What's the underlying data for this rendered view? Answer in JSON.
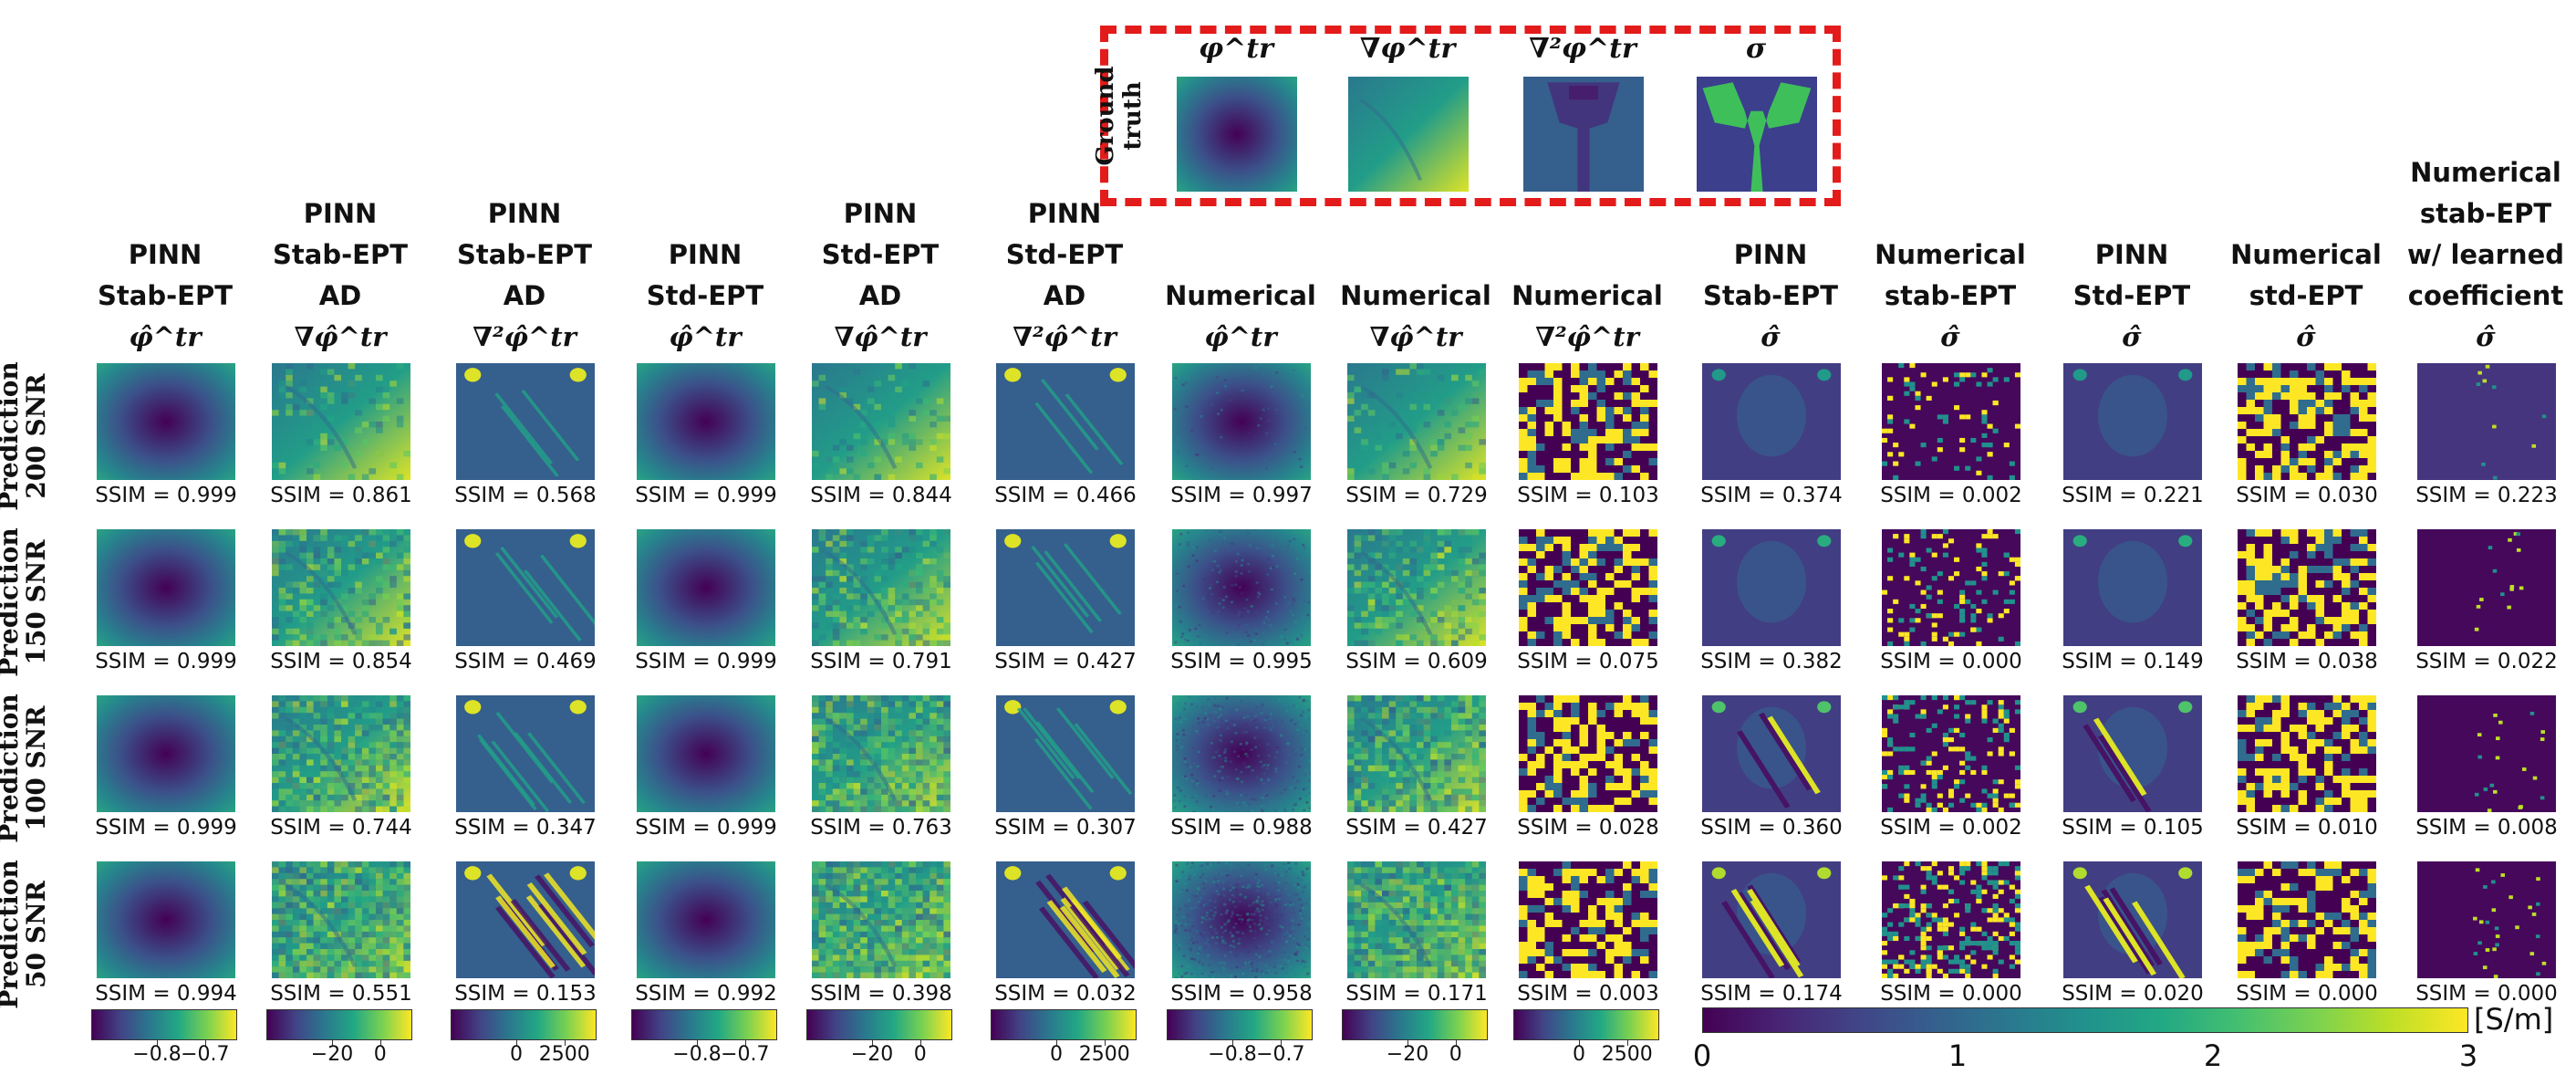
{
  "ground_truth": {
    "row_label_lines": [
      "Ground",
      "truth"
    ],
    "titles": [
      "φ^tr",
      "∇φ^tr",
      "∇²φ^tr",
      "σ"
    ]
  },
  "columns": [
    {
      "lines": [
        "PINN",
        "Stab-EPT"
      ],
      "symbol": "φ̂^tr"
    },
    {
      "lines": [
        "PINN",
        "Stab-EPT",
        "AD"
      ],
      "symbol": "∇φ̂^tr"
    },
    {
      "lines": [
        "PINN",
        "Stab-EPT",
        "AD"
      ],
      "symbol": "∇²φ̂^tr"
    },
    {
      "lines": [
        "PINN",
        "Std-EPT"
      ],
      "symbol": "φ̂^tr"
    },
    {
      "lines": [
        "PINN",
        "Std-EPT",
        "AD"
      ],
      "symbol": "∇φ̂^tr"
    },
    {
      "lines": [
        "PINN",
        "Std-EPT",
        "AD"
      ],
      "symbol": "∇²φ̂^tr"
    },
    {
      "lines": [
        "Numerical"
      ],
      "symbol": "φ̂^tr"
    },
    {
      "lines": [
        "Numerical"
      ],
      "symbol": "∇φ̂^tr"
    },
    {
      "lines": [
        "Numerical"
      ],
      "symbol": "∇²φ̂^tr"
    },
    {
      "lines": [
        "PINN",
        "Stab-EPT"
      ],
      "symbol": "σ̂"
    },
    {
      "lines": [
        "Numerical",
        "stab-EPT"
      ],
      "symbol": "σ̂"
    },
    {
      "lines": [
        "PINN",
        "Std-EPT"
      ],
      "symbol": "σ̂"
    },
    {
      "lines": [
        "Numerical",
        "std-EPT"
      ],
      "symbol": "σ̂"
    },
    {
      "lines": [
        "Numerical",
        "stab-EPT",
        "w/ learned",
        "coefficient"
      ],
      "symbol": "σ̂"
    }
  ],
  "rows": [
    {
      "label": "Prediction\n200 SNR",
      "ssim": [
        "0.999",
        "0.861",
        "0.568",
        "0.999",
        "0.844",
        "0.466",
        "0.997",
        "0.729",
        "0.103",
        "0.374",
        "0.002",
        "0.221",
        "0.030",
        "0.223"
      ]
    },
    {
      "label": "Prediction\n150 SNR",
      "ssim": [
        "0.999",
        "0.854",
        "0.469",
        "0.999",
        "0.791",
        "0.427",
        "0.995",
        "0.609",
        "0.075",
        "0.382",
        "0.000",
        "0.149",
        "0.038",
        "0.022"
      ]
    },
    {
      "label": "Prediction\n100 SNR",
      "ssim": [
        "0.999",
        "0.744",
        "0.347",
        "0.999",
        "0.763",
        "0.307",
        "0.988",
        "0.427",
        "0.028",
        "0.360",
        "0.002",
        "0.105",
        "0.010",
        "0.008"
      ]
    },
    {
      "label": "Prediction\n50 SNR",
      "ssim": [
        "0.994",
        "0.551",
        "0.153",
        "0.992",
        "0.398",
        "0.032",
        "0.958",
        "0.171",
        "0.003",
        "0.174",
        "0.000",
        "0.020",
        "0.000",
        "0.000"
      ]
    }
  ],
  "ssim_prefix": "SSIM = ",
  "colorbars": [
    {
      "ticks": [
        "−0.8",
        "−0.7"
      ]
    },
    {
      "ticks": [
        "−20",
        "0"
      ]
    },
    {
      "ticks": [
        "0",
        "2500"
      ]
    },
    {
      "ticks": [
        "−0.8",
        "−0.7"
      ]
    },
    {
      "ticks": [
        "−20",
        "0"
      ]
    },
    {
      "ticks": [
        "0",
        "2500"
      ]
    },
    {
      "ticks": [
        "−0.8",
        "−0.7"
      ]
    },
    {
      "ticks": [
        "−20",
        "0"
      ]
    },
    {
      "ticks": [
        "0",
        "2500"
      ]
    }
  ],
  "conductivity_colorbar": {
    "ticks": [
      "0",
      "1",
      "2",
      "3"
    ],
    "unit": "[S/m]"
  },
  "colors": {
    "viridis_dark": "#440154",
    "viridis_blue": "#31688e",
    "viridis_teal": "#21918c",
    "viridis_green": "#35b779",
    "viridis_yellow": "#fde725",
    "gt_border": "#e31b1b",
    "gt_sigma_green": "#3fbf5a"
  }
}
